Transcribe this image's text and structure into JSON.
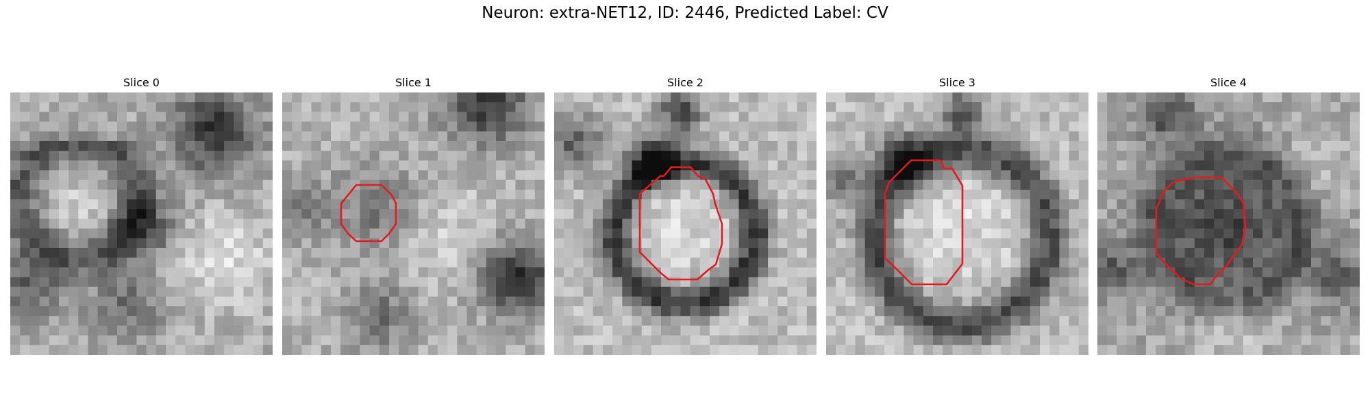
{
  "figure": {
    "title": "Neuron: extra-NET12, ID: 2446, Predicted Label: CV"
  },
  "slices": [
    {
      "title": "Slice 0",
      "has_contour": false
    },
    {
      "title": "Slice 1",
      "has_contour": true
    },
    {
      "title": "Slice 2",
      "has_contour": true
    },
    {
      "title": "Slice 3",
      "has_contour": true
    },
    {
      "title": "Slice 4",
      "has_contour": true
    }
  ],
  "colors": {
    "contour": "#e41a1c",
    "colormap": "grayscale"
  }
}
